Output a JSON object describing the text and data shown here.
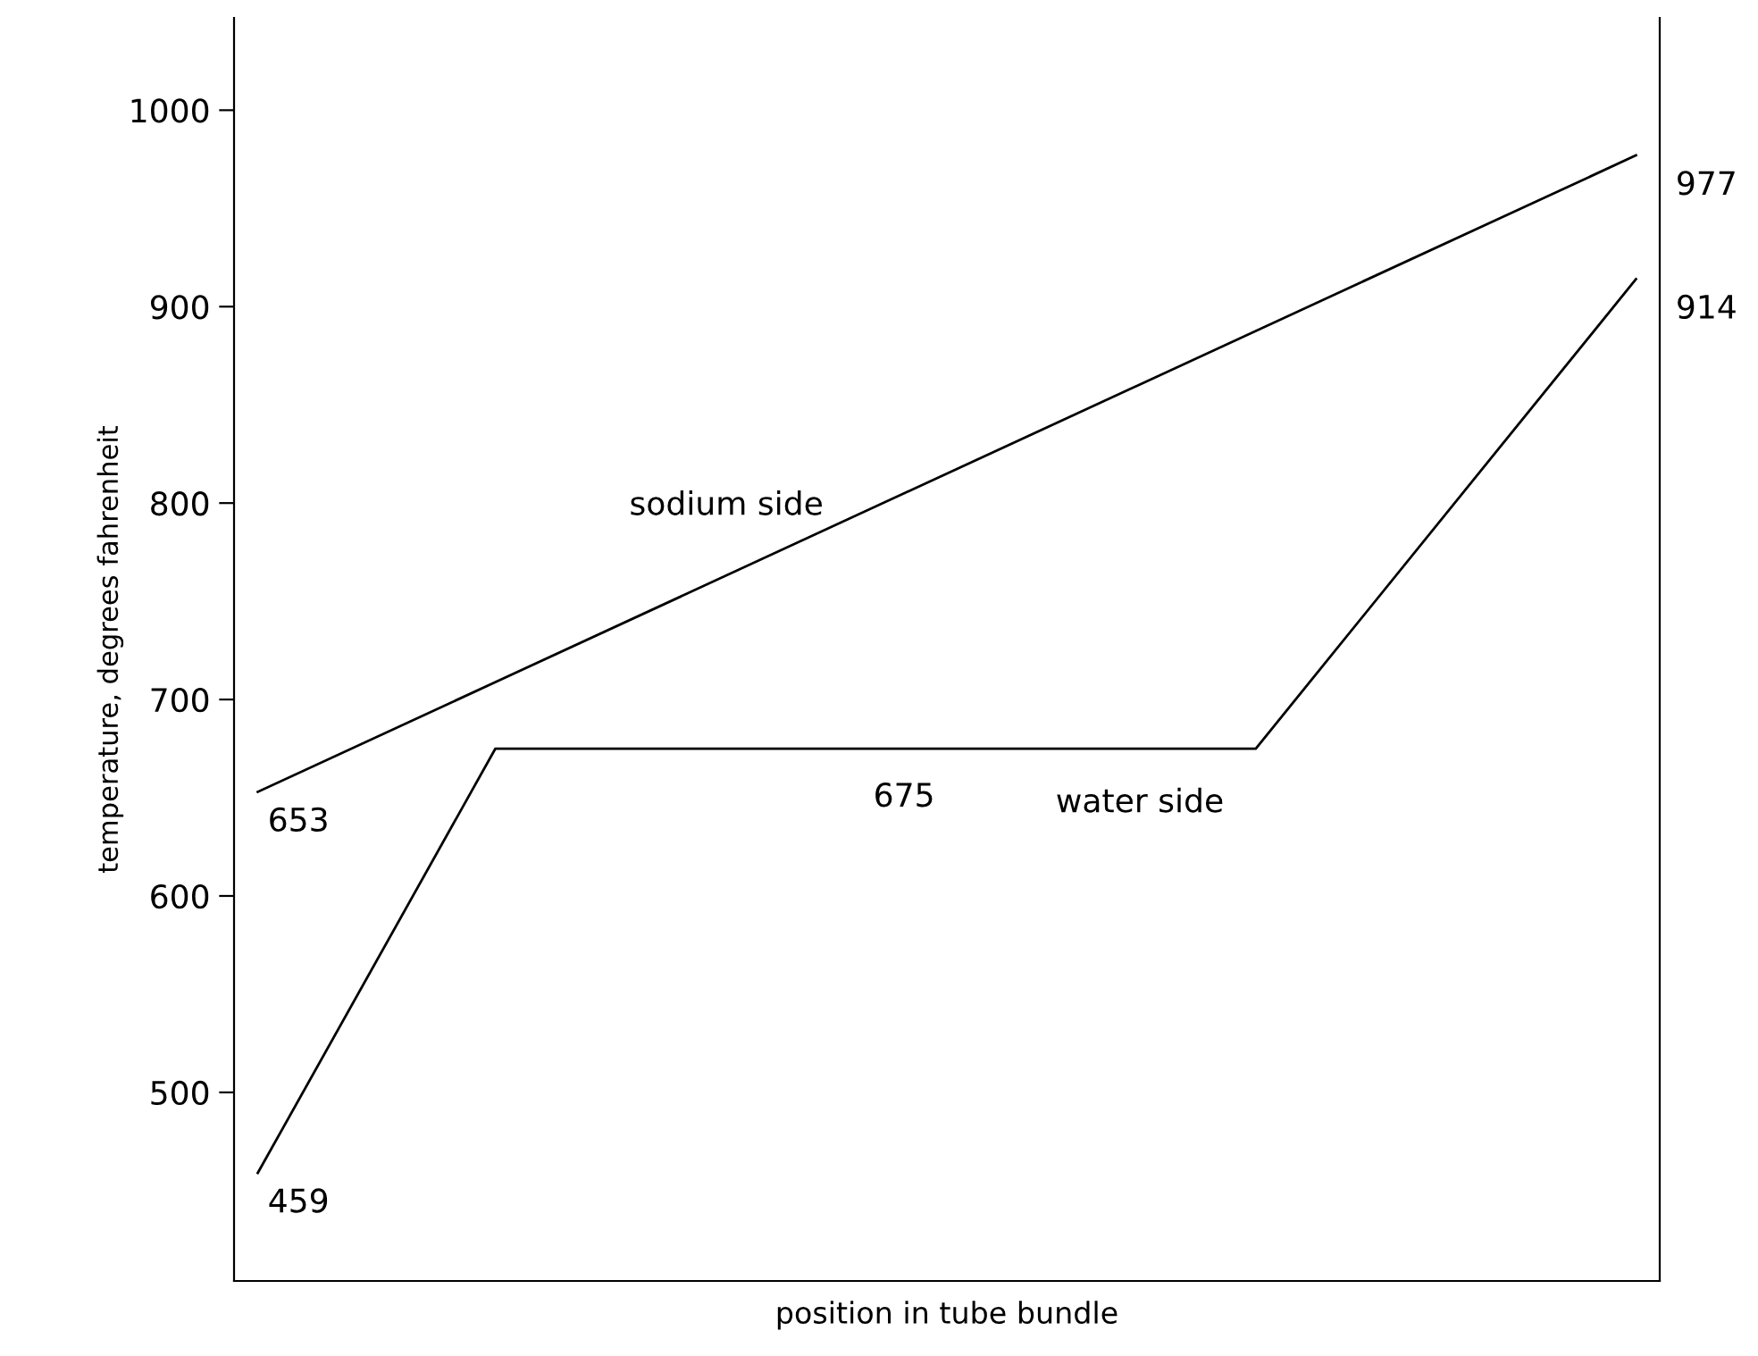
{
  "chart_data": {
    "type": "line",
    "xlabel": "position in tube bundle",
    "ylabel": "temperature, degrees fahrenheit",
    "categories": [
      null,
      null,
      null,
      null,
      null,
      null,
      null,
      null,
      null,
      null,
      null,
      null,
      null,
      null,
      null,
      null,
      null,
      null,
      null,
      null,
      null,
      null,
      null,
      null,
      null,
      null,
      null,
      null,
      null,
      null
    ],
    "ylim": [
      404,
      1047
    ],
    "yticks": [
      500,
      600,
      700,
      800,
      900,
      1000
    ],
    "tick_labels": "y",
    "grid": false,
    "legend": false,
    "marker": "none",
    "line_style": "solid",
    "series": [
      {
        "name": "sodium side",
        "color": "#000000",
        "values": [
          653,
          null,
          null,
          null,
          null,
          null,
          null,
          null,
          null,
          null,
          null,
          null,
          null,
          null,
          null,
          null,
          null,
          null,
          null,
          null,
          null,
          null,
          null,
          null,
          null,
          null,
          null,
          null,
          null,
          977
        ],
        "value_labels": [
          "653",
          null,
          null,
          null,
          null,
          null,
          null,
          null,
          null,
          null,
          null,
          null,
          null,
          null,
          null,
          null,
          null,
          null,
          null,
          null,
          null,
          null,
          null,
          null,
          null,
          null,
          null,
          null,
          null,
          "977"
        ]
      },
      {
        "name": "water side",
        "color": "#000000",
        "values": [
          459,
          null,
          null,
          null,
          null,
          675,
          null,
          null,
          null,
          null,
          null,
          null,
          null,
          null,
          null,
          null,
          null,
          null,
          null,
          null,
          null,
          675,
          null,
          null,
          null,
          null,
          null,
          null,
          null,
          914
        ],
        "value_labels": [
          "459",
          null,
          null,
          null,
          null,
          null,
          null,
          null,
          null,
          null,
          null,
          null,
          null,
          null,
          null,
          null,
          null,
          null,
          null,
          null,
          null,
          null,
          null,
          null,
          null,
          null,
          null,
          null,
          null,
          "914"
        ]
      }
    ],
    "annotations": [
      "675"
    ]
  }
}
